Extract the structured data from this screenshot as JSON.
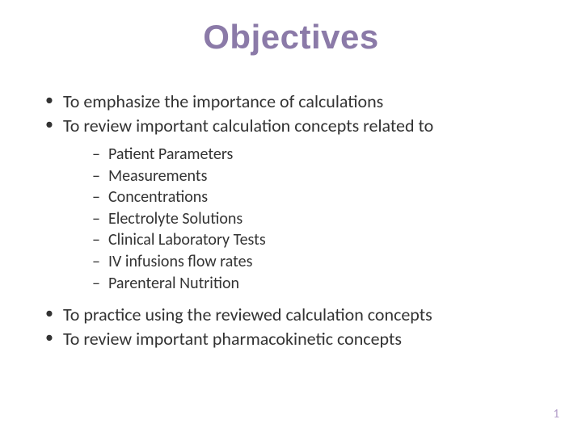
{
  "title": "Objectives",
  "title_color": "#8b7aa8",
  "title_fontsize": 42,
  "body_color": "#333333",
  "body_fontsize": 22,
  "sub_fontsize": 20,
  "background_color": "#ffffff",
  "bullets": {
    "b0": "To emphasize the importance of calculations",
    "b1": "To review important calculation concepts related to",
    "b2": "To practice using the reviewed calculation concepts",
    "b3": "To review important pharmacokinetic concepts"
  },
  "sub_bullets": {
    "s0": "Patient Parameters",
    "s1": "Measurements",
    "s2": "Concentrations",
    "s3": "Electrolyte Solutions",
    "s4": "Clinical Laboratory Tests",
    "s5": "IV infusions flow rates",
    "s6": "Parenteral Nutrition"
  },
  "page_number": "1",
  "page_number_color": "#b19cc8"
}
